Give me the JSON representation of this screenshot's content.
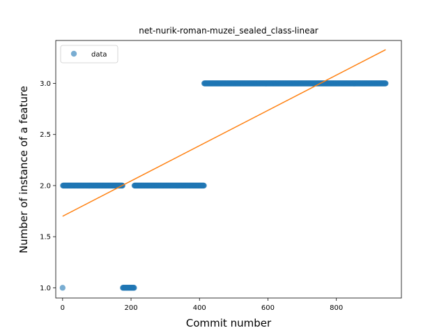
{
  "chart_data": {
    "type": "scatter",
    "title": "net-nurik-roman-muzei_sealed_class-linear",
    "xlabel": "Commit number",
    "ylabel": "Number of instance of a feature",
    "xlim": [
      -20,
      990
    ],
    "ylim": [
      0.9,
      3.42
    ],
    "xticks": [
      0,
      200,
      400,
      600,
      800
    ],
    "yticks": [
      1.0,
      1.5,
      2.0,
      2.5,
      3.0
    ],
    "xtick_labels": [
      "0",
      "200",
      "400",
      "600",
      "800"
    ],
    "ytick_labels": [
      "1.0",
      "1.5",
      "2.0",
      "2.5",
      "3.0"
    ],
    "grid": false,
    "legend": {
      "position": "top-left",
      "entries": [
        "data"
      ]
    },
    "series": [
      {
        "name": "data",
        "kind": "scatter",
        "color": "#1f77b4",
        "segments": [
          {
            "x_start": 0,
            "x_end": 0,
            "y": 1.0
          },
          {
            "x_start": 1,
            "x_end": 175,
            "y": 2.0
          },
          {
            "x_start": 176,
            "x_end": 209,
            "y": 1.0
          },
          {
            "x_start": 210,
            "x_end": 413,
            "y": 2.0
          },
          {
            "x_start": 414,
            "x_end": 944,
            "y": 3.0
          }
        ]
      },
      {
        "kind": "line",
        "color": "#ff7f0e",
        "x": [
          0,
          944
        ],
        "y": [
          1.7,
          3.33
        ]
      }
    ]
  }
}
